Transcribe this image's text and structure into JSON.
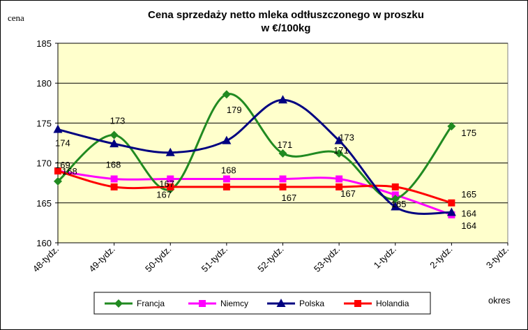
{
  "chart_data": {
    "type": "line",
    "title": "Cena sprzedaży netto mleka  odtłuszczonego w proszku",
    "subtitle": "w €/100kg",
    "ylabel": "cena",
    "xlabel": "okres",
    "ylim": [
      160,
      185
    ],
    "yticks": [
      "160",
      "165",
      "170",
      "175",
      "180",
      "185"
    ],
    "categories": [
      "48-tydz.",
      "49-tydz.",
      "50-tydz.",
      "51-tydz.",
      "52-tydz.",
      "53-tydz.",
      "1-tydz.",
      "2-tydz.",
      "3-tydz."
    ],
    "grid": true,
    "legend_position": "bottom",
    "series": [
      {
        "name": "Francja",
        "color": "#218a21",
        "marker": "diamond",
        "values": [
          167.7,
          173.5,
          166.7,
          178.6,
          171.2,
          171.2,
          165.5,
          174.6,
          null
        ],
        "labels": [
          "168",
          "173",
          "167",
          "179",
          "171",
          "171",
          "165",
          "175",
          ""
        ]
      },
      {
        "name": "Niemcy",
        "color": "#ff00ff",
        "marker": "square",
        "values": [
          169,
          168,
          168,
          168,
          168,
          168,
          166,
          163.5,
          null
        ],
        "labels": [
          "",
          "168",
          "",
          "168",
          "",
          "",
          "",
          "164",
          ""
        ]
      },
      {
        "name": "Polska",
        "color": "#000080",
        "marker": "triangle",
        "values": [
          174.2,
          172.4,
          171.3,
          172.8,
          177.9,
          172.8,
          164.5,
          163.8,
          null
        ],
        "labels": [
          "174",
          "",
          "",
          "",
          "",
          "173",
          "",
          "164",
          ""
        ]
      },
      {
        "name": "Holandia",
        "color": "#ff0000",
        "marker": "square",
        "values": [
          169,
          167,
          167,
          167,
          167,
          167,
          167,
          165,
          null
        ],
        "labels": [
          "169",
          "",
          "167",
          "",
          "167",
          "167",
          "",
          "165",
          ""
        ]
      }
    ]
  },
  "colors": {
    "plot_background": "#ffffcc",
    "frame": "#000000",
    "grid": "#000000"
  }
}
